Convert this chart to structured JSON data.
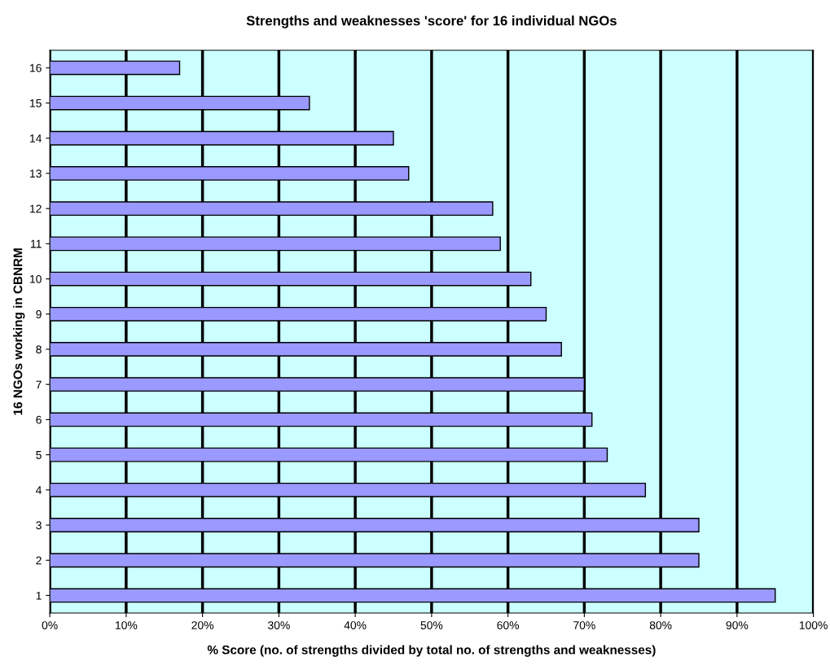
{
  "chart_data": {
    "type": "bar",
    "orientation": "horizontal",
    "title": "Strengths and weaknesses 'score' for 16 individual NGOs",
    "xlabel": "% Score (no. of strengths divided by total no. of strengths and weaknesses)",
    "ylabel": "16 NGOs working in CBNRM",
    "categories": [
      "16",
      "15",
      "14",
      "13",
      "12",
      "11",
      "10",
      "9",
      "8",
      "7",
      "6",
      "5",
      "4",
      "3",
      "2",
      "1"
    ],
    "values": [
      17,
      34,
      45,
      47,
      58,
      59,
      63,
      65,
      67,
      70,
      71,
      73,
      78,
      85,
      85,
      95
    ],
    "color": "#9999ff",
    "xlim": [
      0,
      100
    ],
    "xticks": [
      {
        "value": 0,
        "label": "0%"
      },
      {
        "value": 10,
        "label": "10%"
      },
      {
        "value": 20,
        "label": "20%"
      },
      {
        "value": 30,
        "label": "30%"
      },
      {
        "value": 40,
        "label": "40%"
      },
      {
        "value": 50,
        "label": "50%"
      },
      {
        "value": 60,
        "label": "60%"
      },
      {
        "value": 70,
        "label": "70%"
      },
      {
        "value": 80,
        "label": "80%"
      },
      {
        "value": 90,
        "label": "90%"
      },
      {
        "value": 100,
        "label": "100%"
      }
    ],
    "grid": "x",
    "legend": false
  }
}
